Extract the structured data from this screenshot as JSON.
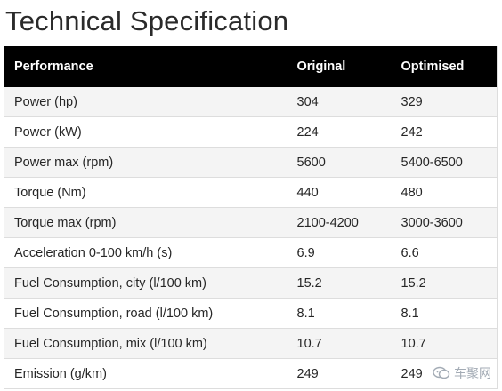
{
  "page": {
    "title": "Technical Specification"
  },
  "table": {
    "headers": [
      "Performance",
      "Original",
      "Optimised"
    ],
    "rows": [
      [
        "Power (hp)",
        "304",
        "329"
      ],
      [
        "Power (kW)",
        "224",
        "242"
      ],
      [
        "Power max (rpm)",
        "5600",
        "5400-6500"
      ],
      [
        "Torque (Nm)",
        "440",
        "480"
      ],
      [
        "Torque max (rpm)",
        "2100-4200",
        "3000-3600"
      ],
      [
        "Acceleration 0-100 km/h (s)",
        "6.9",
        "6.6"
      ],
      [
        "Fuel Consumption, city (l/100 km)",
        "15.2",
        "15.2"
      ],
      [
        "Fuel Consumption, road (l/100 km)",
        "8.1",
        "8.1"
      ],
      [
        "Fuel Consumption, mix (l/100 km)",
        "10.7",
        "10.7"
      ],
      [
        "Emission (g/km)",
        "249",
        "249"
      ]
    ]
  },
  "watermark": {
    "text": "车聚网",
    "icon": "chat-bubble-icon",
    "color": "#9aa3ad"
  },
  "colors": {
    "header_bg": "#000000",
    "header_text": "#ffffff",
    "row_alt_bg": "#f4f4f4",
    "border": "#dddddd"
  }
}
